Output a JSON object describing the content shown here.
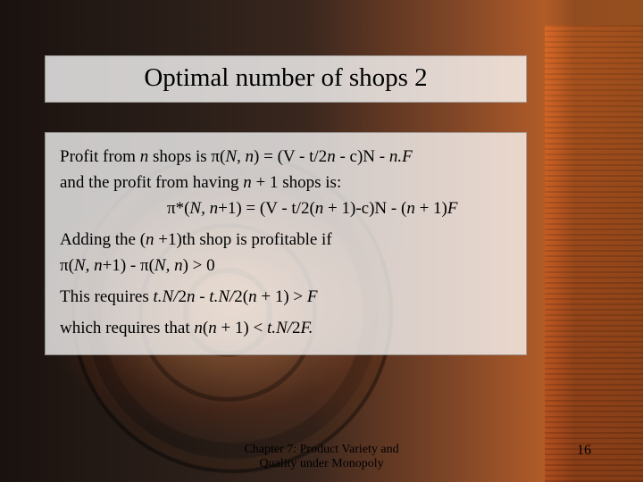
{
  "title": "Optimal number of shops 2",
  "body": {
    "line1a": "Profit from ",
    "line1b": "n",
    "line1c": " shops is π(",
    "line1d": "N, n",
    "line1e": ") = (V - t/2",
    "line1f": "n",
    "line1g": " - c)N - ",
    "line1h": "n.F",
    "line2a": "and the profit from having ",
    "line2b": "n",
    "line2c": " + 1 shops is:",
    "eq1a": "π*(",
    "eq1b": "N, n",
    "eq1c": "+1) = (V - t/2(",
    "eq1d": "n",
    "eq1e": " + 1)-c)N - (",
    "eq1f": "n",
    "eq1g": " + 1)",
    "eq1h": "F",
    "line3a": "Adding the (",
    "line3b": "n",
    "line3c": " +1)th shop is profitable if",
    "line4a": "π(",
    "line4b": "N, n",
    "line4c": "+1) - π(",
    "line4d": "N, n",
    "line4e": ") > 0",
    "line5a": "This requires ",
    "line5b": "t.N/",
    "line5c": "2",
    "line5d": "n",
    "line5e": " - ",
    "line5f": "t.N/",
    "line5g": "2(",
    "line5h": "n",
    "line5i": " + 1) > ",
    "line5j": "F",
    "line6a": "which requires that ",
    "line6b": "n",
    "line6c": "(",
    "line6d": "n",
    "line6e": " + 1) < ",
    "line6f": "t.N/",
    "line6g": "2",
    "line6h": "F.",
    "footer_l1": "Chapter 7: Product Variety and",
    "footer_l2": "Quality under Monopoly",
    "page_num": "16"
  }
}
